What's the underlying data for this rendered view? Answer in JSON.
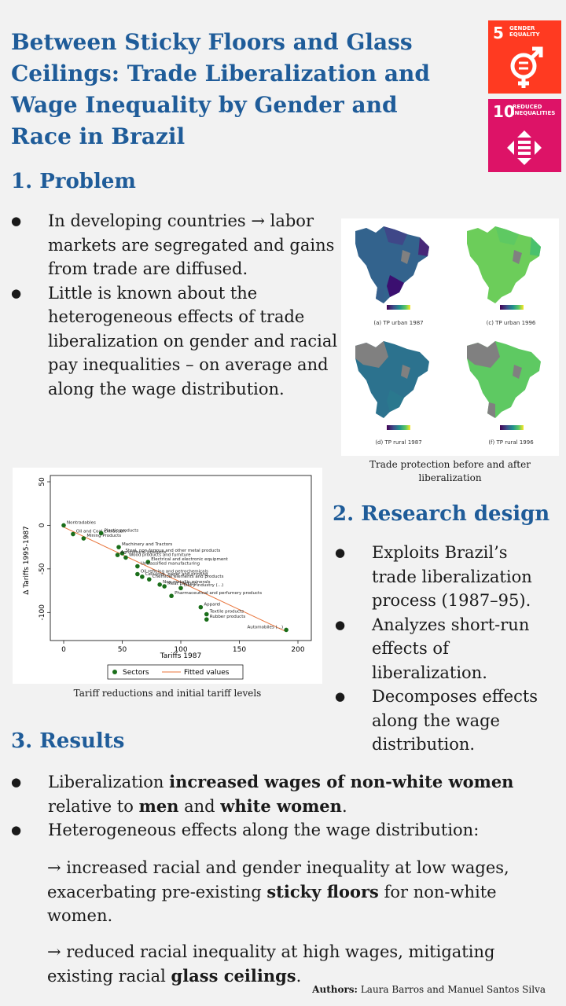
{
  "title": "Between Sticky Floors and Glass Ceilings: Trade Liberalization and Wage Inequality by Gender and Race in Brazil",
  "sdg": [
    {
      "number": "5",
      "label_line1": "GENDER",
      "label_line2": "EQUALITY",
      "icon": "gender-equality-icon",
      "color": "#ff3a21"
    },
    {
      "number": "10",
      "label_line1": "REDUCED",
      "label_line2": "INEQUALITIES",
      "icon": "reduced-inequalities-icon",
      "color": "#dd1367"
    }
  ],
  "problem": {
    "heading": "1. Problem",
    "bullets": [
      "In developing countries → labor markets are segregated and gains from trade are diffused.",
      "Little is known about the heterogeneous effects of trade liberalization on gender and racial pay inequalities – on average and along the wage distribution."
    ]
  },
  "maps": {
    "labels": [
      "(a) TP urban 1987",
      "(c) TP urban 1996",
      "(d) TP rural 1987",
      "(f) TP rural 1996"
    ],
    "caption": "Trade protection before and after liberalization"
  },
  "scatter": {
    "caption": "Tariff reductions and initial tariff levels",
    "legend_sectors": "Sectors",
    "legend_fit": "Fitted values",
    "chart_data": {
      "type": "scatter",
      "xlabel": "Tariffs 1987",
      "ylabel": "Δ Tariffs 1995-1987",
      "xlim": [
        0,
        200
      ],
      "ylim": [
        -125,
        50
      ],
      "xticks": [
        0,
        50,
        100,
        150,
        200
      ],
      "yticks": [
        50,
        0,
        -50,
        -100
      ],
      "fitted_line": [
        [
          0,
          -2
        ],
        [
          190,
          -122
        ]
      ],
      "points": [
        {
          "label": "Nontradables",
          "x": 0,
          "y": 0
        },
        {
          "label": "Oil and Coal extraction",
          "x": 8,
          "y": -10
        },
        {
          "label": "Mining Products",
          "x": 17,
          "y": -15
        },
        {
          "label": "Plastic products",
          "x": 32,
          "y": -9
        },
        {
          "label": "Machinery and Tractors",
          "x": 47,
          "y": -25
        },
        {
          "label": "Steel, non-ferrous and other metal products",
          "x": 50,
          "y": -32
        },
        {
          "label": "Agricultural products",
          "x": 46,
          "y": -34
        },
        {
          "label": "Wood products and furniture",
          "x": 53,
          "y": -37
        },
        {
          "label": "Electrical and electronic equipment",
          "x": 72,
          "y": -42
        },
        {
          "label": "Unclassified manufacturing",
          "x": 63,
          "y": -47
        },
        {
          "label": "Oil refining and petrochemicals",
          "x": 63,
          "y": -56
        },
        {
          "label": "Cellulose, paper and printing",
          "x": 67,
          "y": -59
        },
        {
          "label": "Chemical elements and products",
          "x": 73,
          "y": -62
        },
        {
          "label": "Non-metallic minerals",
          "x": 82,
          "y": -68
        },
        {
          "label": "Meat packing",
          "x": 86,
          "y": -70
        },
        {
          "label": "Dairy industry (...)",
          "x": 100,
          "y": -72
        },
        {
          "label": "Pharmaceutical and perfumery products",
          "x": 92,
          "y": -81
        },
        {
          "label": "Apparel",
          "x": 117,
          "y": -94
        },
        {
          "label": "Textile products",
          "x": 122,
          "y": -102
        },
        {
          "label": "Rubber products",
          "x": 122,
          "y": -108
        },
        {
          "label": "Automobiles (...)",
          "x": 190,
          "y": -120
        }
      ]
    }
  },
  "design": {
    "heading": "2. Research design",
    "bullets": [
      "Exploits Brazil’s trade liberalization process (1987–95).",
      "Analyzes short-run effects of liberalization.",
      "Decomposes effects along the wage distribution."
    ]
  },
  "results": {
    "heading": "3. Results",
    "b1_a": "Liberalization ",
    "b1_b": "increased wages of non-white women",
    "b1_c": " relative to ",
    "b1_d": "men",
    "b1_e": " and ",
    "b1_f": "white women",
    "b1_g": ".",
    "b2": "Heterogeneous effects along the wage distribution:",
    "s1_a": "→ increased racial and gender inequality at low wages, exacerbating pre-existing ",
    "s1_b": "sticky floors",
    "s1_c": " for non-white women.",
    "s2_a": "→ reduced racial inequality at high wages, mitigating existing racial ",
    "s2_b": "glass ceilings",
    "s2_c": "."
  },
  "authors": {
    "label": "Authors:",
    "names": " Laura Barros and Manuel Santos Silva"
  }
}
